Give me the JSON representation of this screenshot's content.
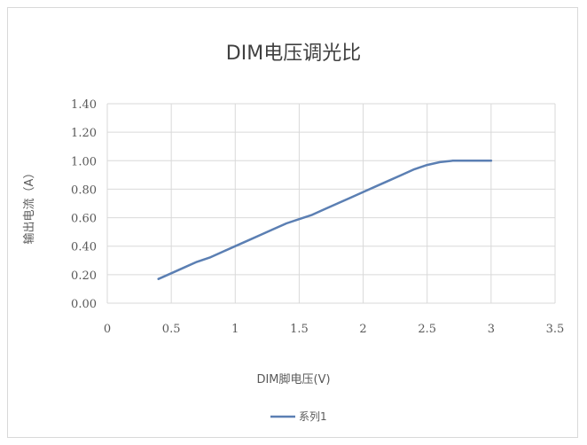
{
  "chart_data": {
    "type": "line",
    "title": "DIM电压调光比",
    "xlabel": "DIM脚电压(V)",
    "ylabel": "输出电流（A）",
    "xlim": [
      0,
      3.5
    ],
    "ylim": [
      0,
      1.4
    ],
    "x_ticks": [
      "0",
      "0.5",
      "1",
      "1.5",
      "2",
      "2.5",
      "3",
      "3.5"
    ],
    "y_ticks": [
      "0.00",
      "0.20",
      "0.40",
      "0.60",
      "0.80",
      "1.00",
      "1.20",
      "1.40"
    ],
    "grid": true,
    "legend_position": "bottom",
    "colors": {
      "series": "#5b7fb3",
      "grid": "#d9d9d9"
    },
    "series": [
      {
        "name": "系列1",
        "x": [
          0.4,
          0.5,
          0.6,
          0.7,
          0.8,
          0.9,
          1.0,
          1.1,
          1.2,
          1.3,
          1.4,
          1.5,
          1.6,
          1.7,
          1.8,
          1.9,
          2.0,
          2.1,
          2.2,
          2.3,
          2.4,
          2.5,
          2.6,
          2.7,
          2.8,
          2.9,
          3.0
        ],
        "y": [
          0.17,
          0.21,
          0.25,
          0.29,
          0.32,
          0.36,
          0.4,
          0.44,
          0.48,
          0.52,
          0.56,
          0.59,
          0.62,
          0.66,
          0.7,
          0.74,
          0.78,
          0.82,
          0.86,
          0.9,
          0.94,
          0.97,
          0.99,
          1.0,
          1.0,
          1.0,
          1.0
        ]
      }
    ]
  }
}
